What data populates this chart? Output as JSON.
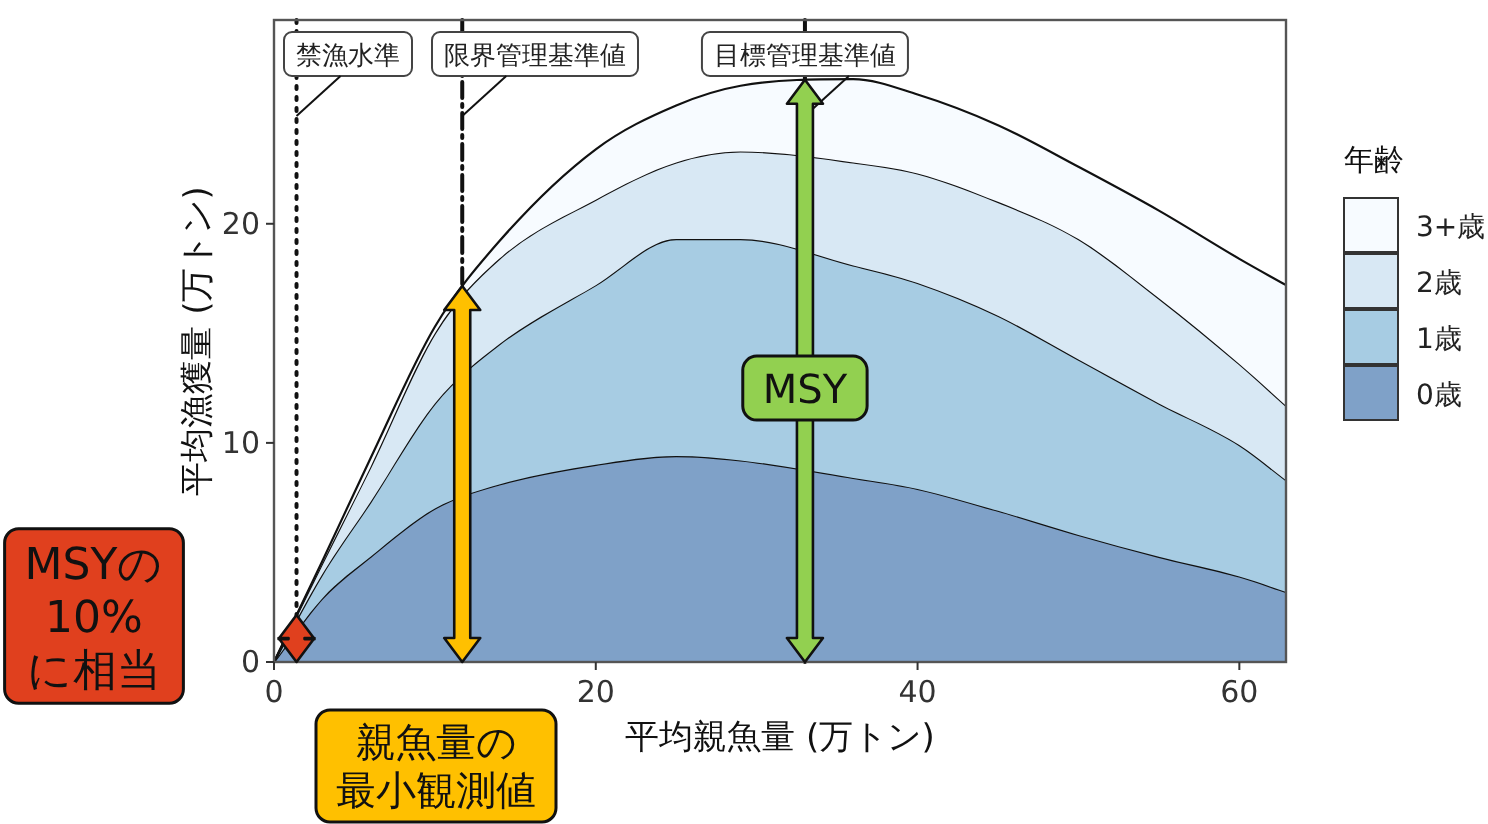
{
  "chart_data": {
    "type": "area",
    "stacked": true,
    "xlabel": "平均親魚量 (万トン)",
    "ylabel": "平均漁獲量 (万トン)",
    "legend_title": "年齢",
    "legend": "right",
    "x": [
      0,
      3,
      6,
      10,
      14,
      20,
      25,
      29,
      36,
      40,
      45,
      50,
      55,
      60,
      62.9
    ],
    "series": [
      {
        "name": "0歳",
        "color": "#7fa1c8",
        "values": [
          0,
          2.9,
          4.8,
          7.0,
          8.1,
          9.0,
          9.4,
          9.2,
          8.4,
          7.9,
          6.9,
          5.8,
          4.8,
          3.9,
          3.2
        ]
      },
      {
        "name": "1歳",
        "color": "#a7cce3",
        "values": [
          0,
          1.1,
          2.5,
          4.8,
          6.4,
          8.2,
          9.9,
          10.1,
          9.7,
          9.4,
          8.9,
          8.0,
          7.0,
          6.0,
          5.1
        ]
      },
      {
        "name": "2歳",
        "color": "#d8e8f4",
        "values": [
          0,
          0.5,
          1.6,
          3.2,
          3.9,
          3.9,
          3.5,
          4.0,
          4.7,
          5.0,
          5.2,
          5.5,
          4.8,
          3.7,
          3.4
        ]
      },
      {
        "name": "3+歳",
        "color": "#f7fbff",
        "values": [
          0,
          0.1,
          0.4,
          0.3,
          0.8,
          2.3,
          2.6,
          3.0,
          3.8,
          3.6,
          3.5,
          3.3,
          4.0,
          4.8,
          5.5
        ]
      }
    ],
    "xlim": [
      0,
      62.9
    ],
    "ylim": [
      0,
      29.3
    ],
    "xticks": [
      0,
      20,
      40,
      60
    ],
    "yticks": [
      0,
      10,
      20
    ],
    "grid": false,
    "ref_lines": [
      {
        "axis": "x",
        "value": 1.4,
        "label": "禁漁水準",
        "line_style": "dotted"
      },
      {
        "axis": "x",
        "value": 11.7,
        "label": "限界管理基準値",
        "line_style": "dashdot"
      },
      {
        "axis": "x",
        "value": 33,
        "label": "目標管理基準値",
        "line_style": "solid"
      }
    ],
    "annotations": [
      "MSYの10%に相当",
      "親魚量の最小観測値",
      "MSY"
    ]
  }
}
